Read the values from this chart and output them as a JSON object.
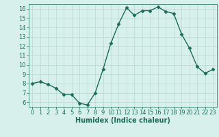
{
  "x": [
    0,
    1,
    2,
    3,
    4,
    5,
    6,
    7,
    8,
    9,
    10,
    11,
    12,
    13,
    14,
    15,
    16,
    17,
    18,
    19,
    20,
    21,
    22,
    23
  ],
  "y": [
    8.0,
    8.2,
    7.9,
    7.5,
    6.8,
    6.8,
    5.9,
    5.7,
    7.0,
    9.5,
    12.3,
    14.4,
    16.1,
    15.3,
    15.8,
    15.8,
    16.2,
    15.7,
    15.5,
    13.3,
    11.8,
    9.8,
    9.1,
    9.5
  ],
  "line_color": "#1a6b5a",
  "bg_color": "#d8f0ec",
  "grid_color": "#b8d8d0",
  "xlabel": "Humidex (Indice chaleur)",
  "ylim": [
    5.5,
    16.5
  ],
  "xlim": [
    -0.5,
    23.5
  ],
  "yticks": [
    6,
    7,
    8,
    9,
    10,
    11,
    12,
    13,
    14,
    15,
    16
  ],
  "xticks": [
    0,
    1,
    2,
    3,
    4,
    5,
    6,
    7,
    8,
    9,
    10,
    11,
    12,
    13,
    14,
    15,
    16,
    17,
    18,
    19,
    20,
    21,
    22,
    23
  ],
  "marker_size": 2.5,
  "line_width": 1.0,
  "xlabel_fontsize": 7,
  "tick_fontsize": 6
}
